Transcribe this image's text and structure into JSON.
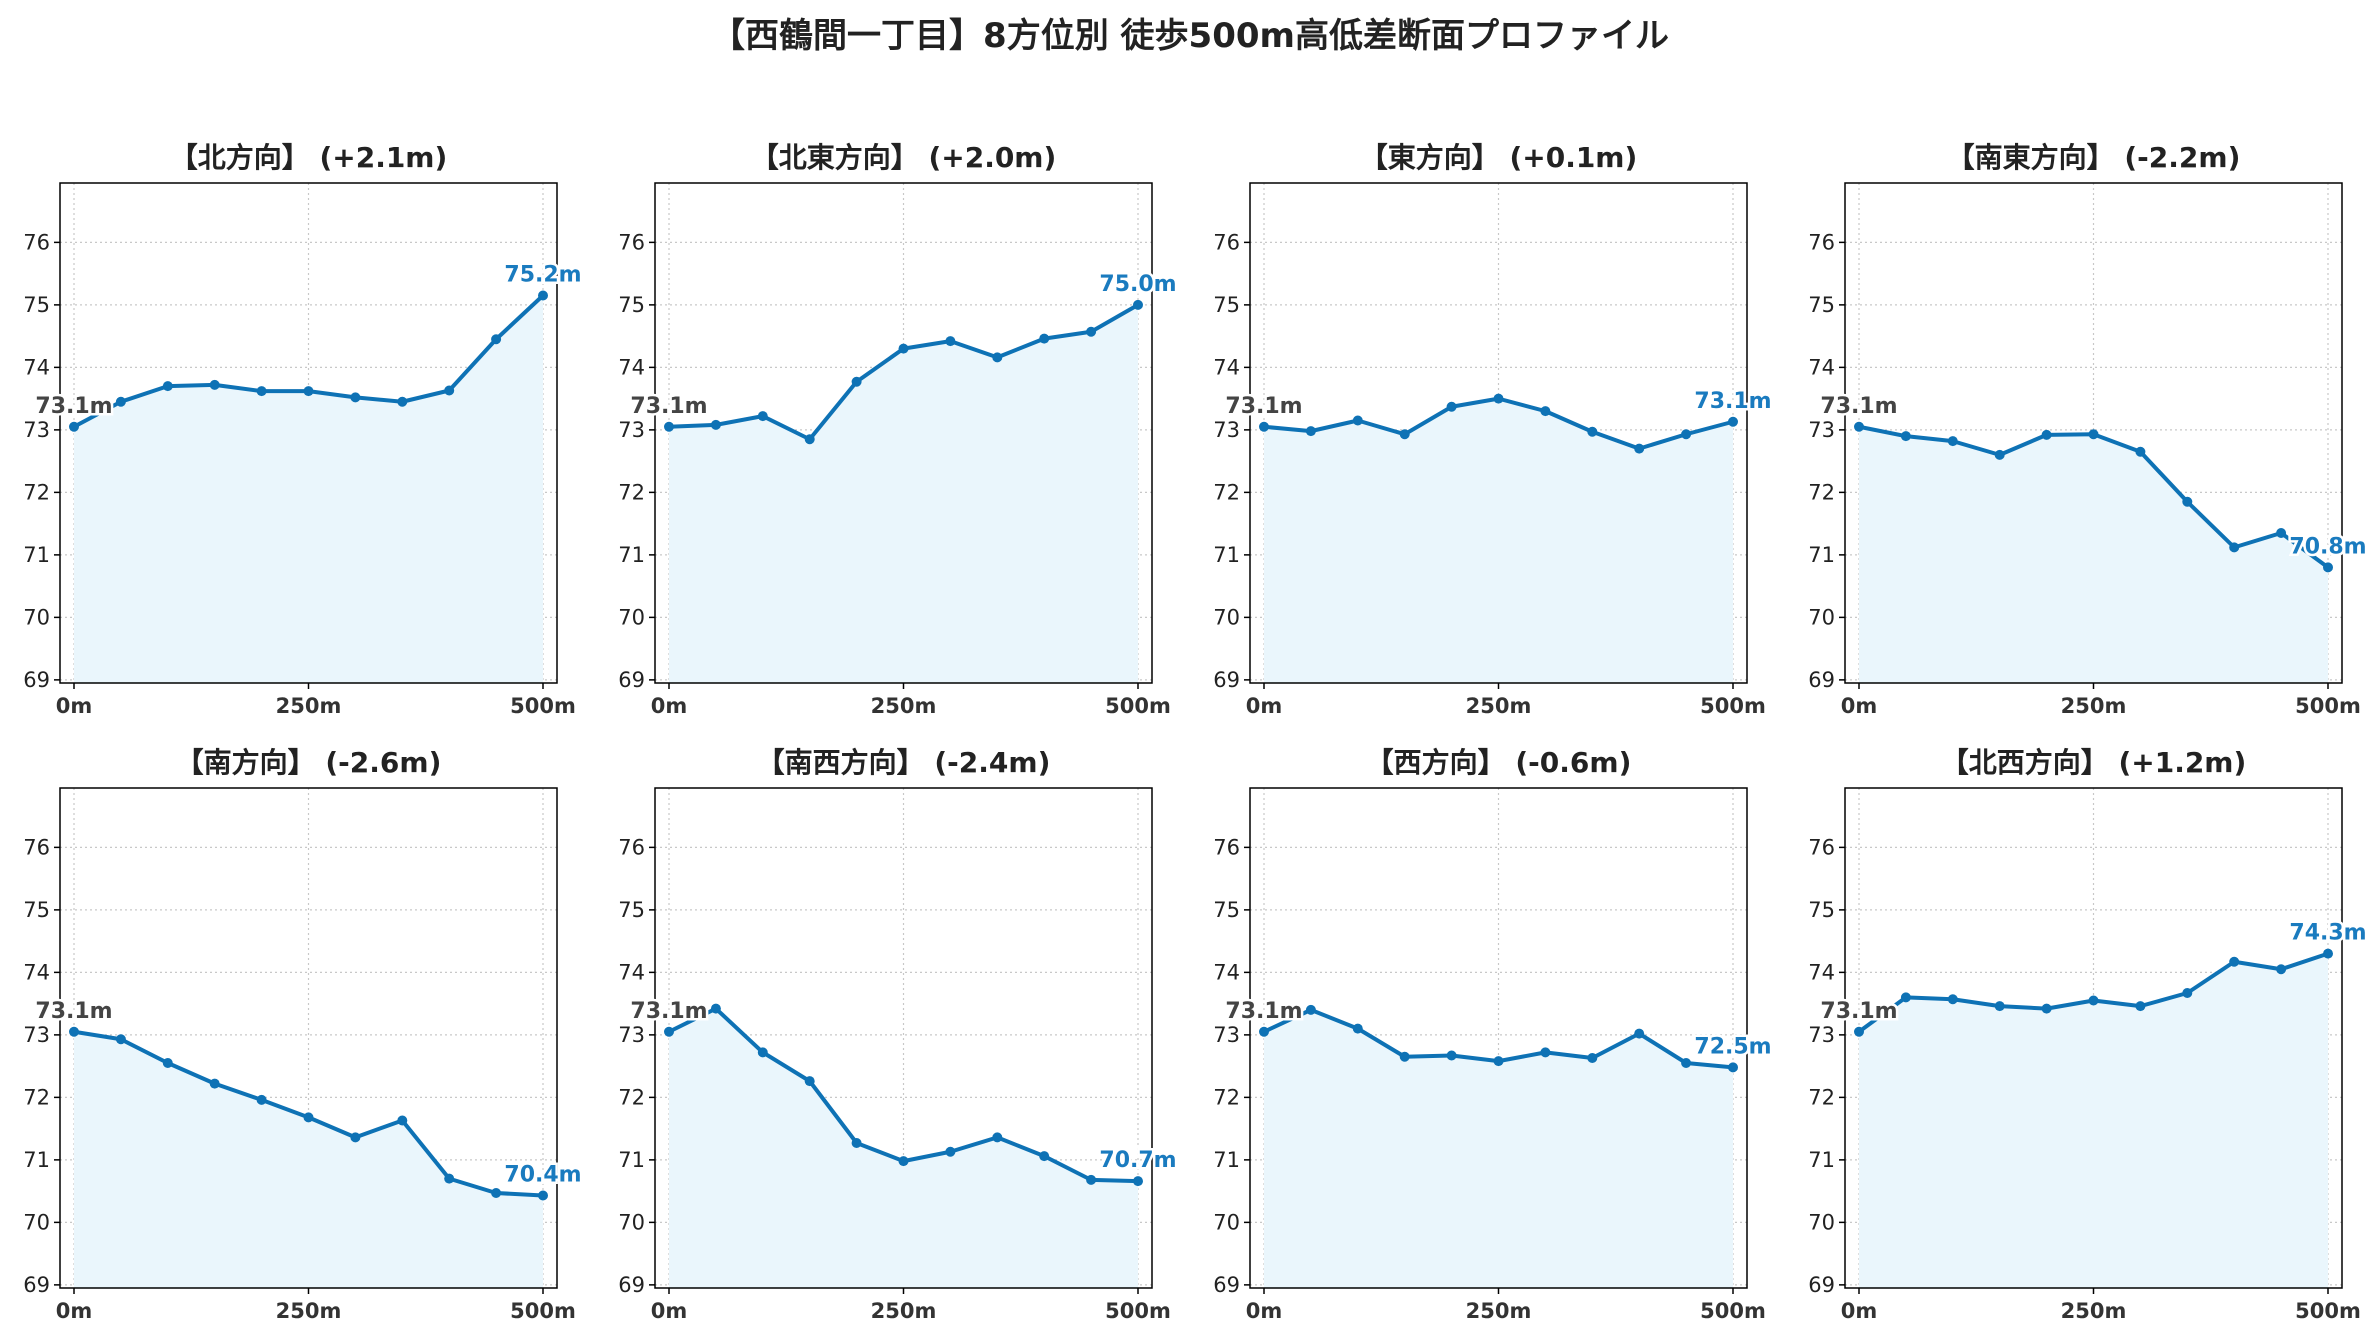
{
  "title": "【西鶴間一丁目】8方位別 徒歩500m高低差断面プロファイル",
  "colors": {
    "line": "#0e72b5",
    "fill": "#eaf6fc",
    "end_label": "#1a7bbf",
    "start_label": "#444444",
    "grid": "#c8c8c8"
  },
  "chart_data": [
    {
      "type": "area",
      "title": "【北方向】 (+2.1m)",
      "xlim": [
        0,
        500
      ],
      "ylim": [
        69,
        77
      ],
      "x": [
        0,
        50,
        100,
        150,
        200,
        250,
        300,
        350,
        400,
        450,
        500
      ],
      "y": [
        73.05,
        73.45,
        73.7,
        73.72,
        73.62,
        73.62,
        73.52,
        73.45,
        73.63,
        74.45,
        75.15
      ],
      "xticks": [
        "0m",
        "250m",
        "500m"
      ],
      "yticks": [
        "69",
        "70",
        "71",
        "72",
        "73",
        "74",
        "75",
        "76"
      ],
      "start_label": "73.1m",
      "end_label": "75.2m",
      "grid": true
    },
    {
      "type": "area",
      "title": "【北東方向】 (+2.0m)",
      "xlim": [
        0,
        500
      ],
      "ylim": [
        69,
        77
      ],
      "x": [
        0,
        50,
        100,
        150,
        200,
        250,
        300,
        350,
        400,
        450,
        500
      ],
      "y": [
        73.05,
        73.08,
        73.22,
        72.85,
        73.77,
        74.3,
        74.42,
        74.16,
        74.46,
        74.57,
        75.0
      ],
      "xticks": [
        "0m",
        "250m",
        "500m"
      ],
      "yticks": [
        "69",
        "70",
        "71",
        "72",
        "73",
        "74",
        "75",
        "76"
      ],
      "start_label": "73.1m",
      "end_label": "75.0m",
      "grid": true
    },
    {
      "type": "area",
      "title": "【東方向】 (+0.1m)",
      "xlim": [
        0,
        500
      ],
      "ylim": [
        69,
        77
      ],
      "x": [
        0,
        50,
        100,
        150,
        200,
        250,
        300,
        350,
        400,
        450,
        500
      ],
      "y": [
        73.05,
        72.98,
        73.15,
        72.93,
        73.37,
        73.5,
        73.3,
        72.97,
        72.7,
        72.93,
        73.13
      ],
      "xticks": [
        "0m",
        "250m",
        "500m"
      ],
      "yticks": [
        "69",
        "70",
        "71",
        "72",
        "73",
        "74",
        "75",
        "76"
      ],
      "start_label": "73.1m",
      "end_label": "73.1m",
      "grid": true
    },
    {
      "type": "area",
      "title": "【南東方向】 (-2.2m)",
      "xlim": [
        0,
        500
      ],
      "ylim": [
        69,
        77
      ],
      "x": [
        0,
        50,
        100,
        150,
        200,
        250,
        300,
        350,
        400,
        450,
        500
      ],
      "y": [
        73.05,
        72.9,
        72.82,
        72.6,
        72.92,
        72.93,
        72.65,
        71.85,
        71.12,
        71.35,
        70.8
      ],
      "xticks": [
        "0m",
        "250m",
        "500m"
      ],
      "yticks": [
        "69",
        "70",
        "71",
        "72",
        "73",
        "74",
        "75",
        "76"
      ],
      "start_label": "73.1m",
      "end_label": "70.8m",
      "grid": true
    },
    {
      "type": "area",
      "title": "【南方向】 (-2.6m)",
      "xlim": [
        0,
        500
      ],
      "ylim": [
        69,
        77
      ],
      "x": [
        0,
        50,
        100,
        150,
        200,
        250,
        300,
        350,
        400,
        450,
        500
      ],
      "y": [
        73.05,
        72.93,
        72.55,
        72.22,
        71.96,
        71.68,
        71.36,
        71.63,
        70.7,
        70.47,
        70.43
      ],
      "xticks": [
        "0m",
        "250m",
        "500m"
      ],
      "yticks": [
        "69",
        "70",
        "71",
        "72",
        "73",
        "74",
        "75",
        "76"
      ],
      "start_label": "73.1m",
      "end_label": "70.4m",
      "grid": true
    },
    {
      "type": "area",
      "title": "【南西方向】 (-2.4m)",
      "xlim": [
        0,
        500
      ],
      "ylim": [
        69,
        77
      ],
      "x": [
        0,
        50,
        100,
        150,
        200,
        250,
        300,
        350,
        400,
        450,
        500
      ],
      "y": [
        73.05,
        73.42,
        72.72,
        72.26,
        71.27,
        70.98,
        71.13,
        71.36,
        71.06,
        70.68,
        70.66
      ],
      "xticks": [
        "0m",
        "250m",
        "500m"
      ],
      "yticks": [
        "69",
        "70",
        "71",
        "72",
        "73",
        "74",
        "75",
        "76"
      ],
      "start_label": "73.1m",
      "end_label": "70.7m",
      "grid": true
    },
    {
      "type": "area",
      "title": "【西方向】 (-0.6m)",
      "xlim": [
        0,
        500
      ],
      "ylim": [
        69,
        77
      ],
      "x": [
        0,
        50,
        100,
        150,
        200,
        250,
        300,
        350,
        400,
        450,
        500
      ],
      "y": [
        73.05,
        73.4,
        73.1,
        72.65,
        72.67,
        72.58,
        72.72,
        72.63,
        73.02,
        72.55,
        72.48
      ],
      "xticks": [
        "0m",
        "250m",
        "500m"
      ],
      "yticks": [
        "69",
        "70",
        "71",
        "72",
        "73",
        "74",
        "75",
        "76"
      ],
      "start_label": "73.1m",
      "end_label": "72.5m",
      "grid": true
    },
    {
      "type": "area",
      "title": "【北西方向】 (+1.2m)",
      "xlim": [
        0,
        500
      ],
      "ylim": [
        69,
        77
      ],
      "x": [
        0,
        50,
        100,
        150,
        200,
        250,
        300,
        350,
        400,
        450,
        500
      ],
      "y": [
        73.05,
        73.6,
        73.57,
        73.46,
        73.42,
        73.55,
        73.46,
        73.67,
        74.17,
        74.05,
        74.3
      ],
      "xticks": [
        "0m",
        "250m",
        "500m"
      ],
      "yticks": [
        "69",
        "70",
        "71",
        "72",
        "73",
        "74",
        "75",
        "76"
      ],
      "start_label": "73.1m",
      "end_label": "74.3m",
      "grid": true
    }
  ]
}
